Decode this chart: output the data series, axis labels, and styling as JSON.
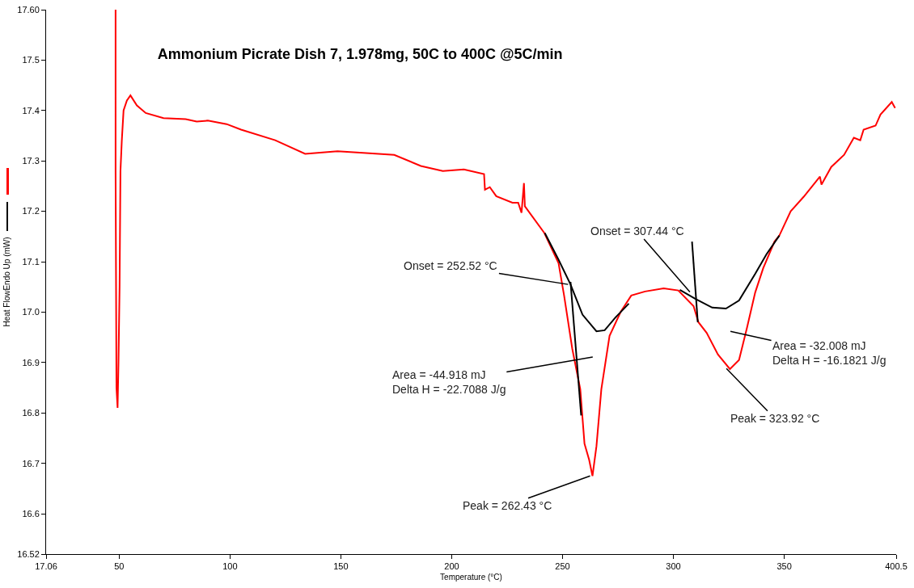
{
  "chart_data": {
    "type": "line",
    "title": "Ammonium Picrate Dish 7, 1.978mg, 50C to 400C @5C/min",
    "xlabel": "Temperature (°C)",
    "ylabel": "Heat FlowEndo Up (mW)",
    "xlim": [
      17.06,
      400.5
    ],
    "xticks": [
      17.06,
      50,
      100,
      150,
      200,
      250,
      300,
      350,
      400.5
    ],
    "ylim": [
      16.52,
      17.6
    ],
    "yticks": [
      16.52,
      16.6,
      16.7,
      16.8,
      16.9,
      {
        "value": 17.0,
        "label": "17.0"
      },
      17.1,
      17.2,
      17.3,
      17.4,
      17.5,
      {
        "value": 17.6,
        "label": "17.60"
      }
    ],
    "grid": false,
    "series": [
      {
        "color": "#ff0000",
        "x": [
          48.4,
          48.4,
          48.8,
          49.3,
          49.7,
          50.2,
          50.6,
          51.2,
          52,
          53.5,
          55.1,
          58,
          62,
          70,
          80,
          85,
          90,
          98.5,
          105,
          120.4,
          133.9,
          148.5,
          160,
          174.1,
          186.1,
          196,
          205.5,
          214.6,
          215,
          217.2,
          220.1,
          227.4,
          230,
          231.5,
          232.6,
          233,
          241.8,
          248.2,
          250.7,
          254.4,
          258,
          259.9,
          262,
          263.5,
          265.3,
          267.5,
          271.2,
          276.3,
          281,
          287.2,
          295.6,
          302.2,
          309.1,
          311.3,
          315,
          320.1,
          325.5,
          329.6,
          333.2,
          336.9,
          340.5,
          345.6,
          347.8,
          352.9,
          358.8,
          366.1,
          366.8,
          371.2,
          377,
          381.4,
          384.3,
          385.8,
          391.2,
          393.4,
          398.5,
          400
        ],
        "values": [
          17.6,
          17.28,
          16.85,
          16.81,
          16.9,
          17.05,
          17.28,
          17.34,
          17.4,
          17.42,
          17.43,
          17.41,
          17.395,
          17.385,
          17.383,
          17.378,
          17.38,
          17.373,
          17.362,
          17.341,
          17.314,
          17.319,
          17.316,
          17.312,
          17.29,
          17.28,
          17.283,
          17.274,
          17.243,
          17.248,
          17.23,
          17.217,
          17.217,
          17.197,
          17.256,
          17.21,
          17.157,
          17.097,
          17.033,
          16.927,
          16.847,
          16.739,
          16.707,
          16.675,
          16.734,
          16.847,
          16.953,
          17.001,
          17.033,
          17.041,
          17.047,
          17.043,
          17.012,
          16.98,
          16.959,
          16.916,
          16.887,
          16.905,
          16.969,
          17.039,
          17.087,
          17.14,
          17.152,
          17.2,
          17.229,
          17.269,
          17.253,
          17.288,
          17.312,
          17.346,
          17.341,
          17.362,
          17.37,
          17.392,
          17.417,
          17.405
        ]
      },
      {
        "color": "#000000",
        "x": [
          242,
          248.2,
          253.6,
          259,
          265.3,
          269,
          274,
          279.9,
          null,
          302.9,
          310,
          317.5,
          323.7,
          329.6,
          336.9,
          342,
          347.8
        ],
        "values": [
          17.157,
          17.104,
          17.055,
          16.995,
          16.962,
          16.964,
          16.99,
          17.017,
          null,
          17.044,
          17.026,
          17.009,
          17.007,
          17.023,
          17.076,
          17.115,
          17.152
        ]
      },
      {
        "type": "line",
        "color": "#000000",
        "x": [
          253.6,
          258.4
        ],
        "values": [
          17.06,
          16.795
        ]
      },
      {
        "type": "line",
        "color": "#000000",
        "x": [
          308.4,
          311
        ],
        "values": [
          17.14,
          16.98
        ]
      }
    ],
    "annotations": [
      {
        "text": "Onset = 252.52 °C",
        "x": 252.52,
        "y": 17.055
      },
      {
        "text": "Peak = 262.43 °C",
        "x": 262.43,
        "y": 16.675
      },
      "Area = -44.918 mJ\nDelta H = -22.7088 J/g",
      {
        "text": "Onset = 307.44 °C",
        "x": 307.44,
        "y": 17.04
      },
      "Area = -32.008 mJ\nDelta H = -16.1821 J/g",
      {
        "text": "Peak = 323.92 °C",
        "x": 323.92,
        "y": 16.888
      }
    ]
  }
}
